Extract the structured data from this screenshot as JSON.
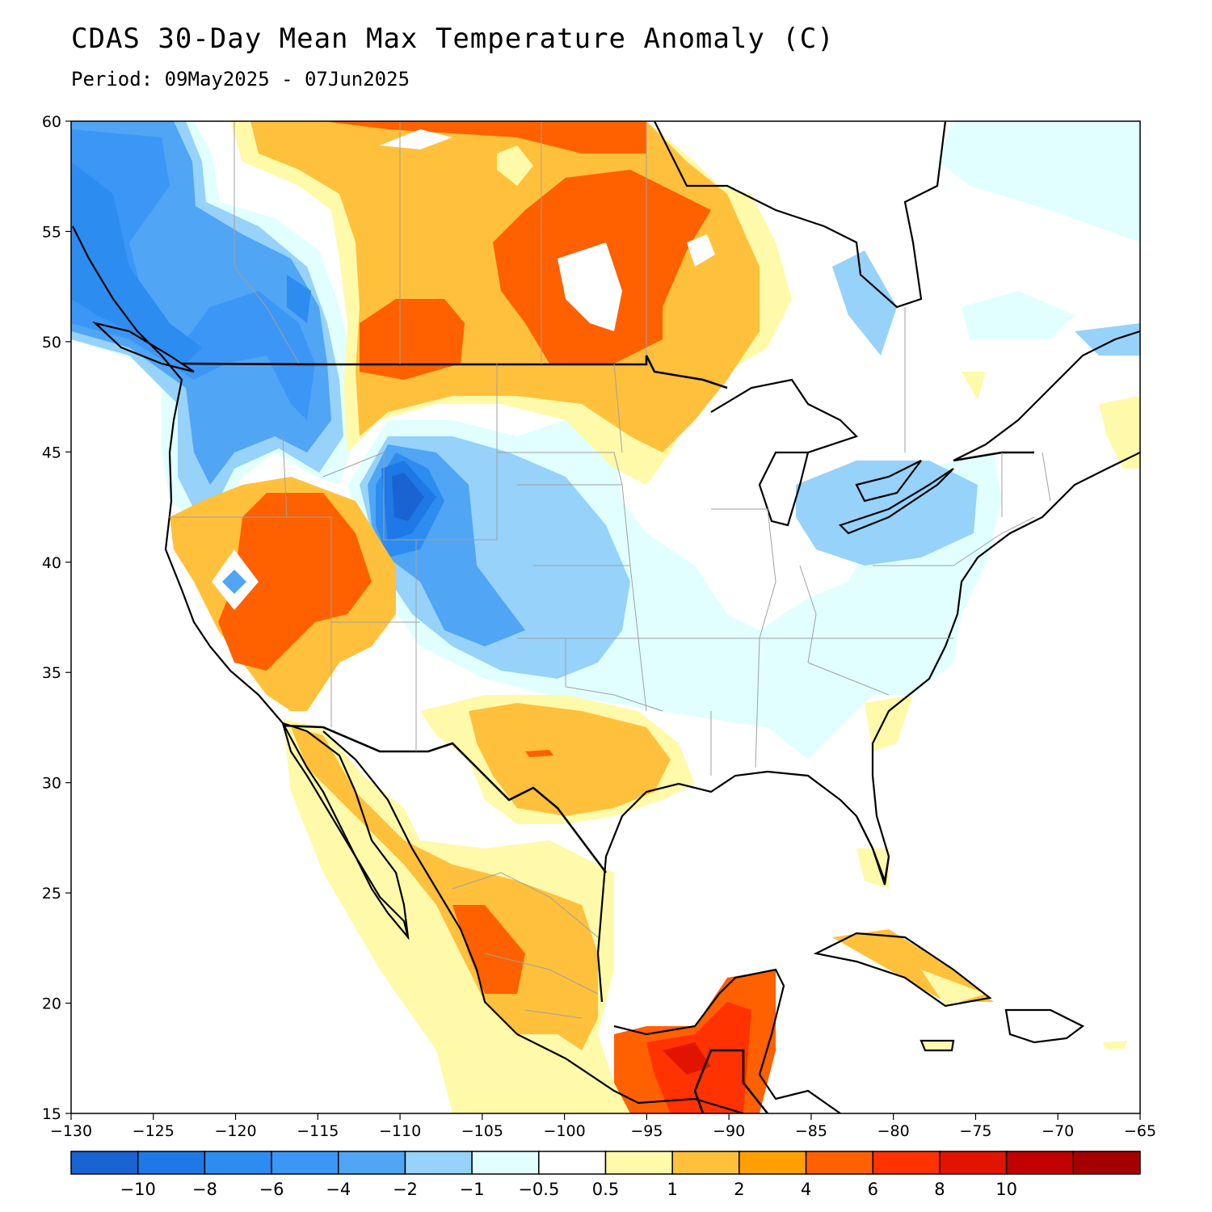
{
  "title": "CDAS 30-Day Mean Max Temperature Anomaly (C)",
  "subtitle": "Period: 09May2025 - 07Jun2025",
  "map": {
    "lon_range": [
      -130,
      -65
    ],
    "lat_range": [
      15,
      60
    ],
    "lon_ticks": [
      "−130",
      "−125",
      "−120",
      "−115",
      "−110",
      "−105",
      "−100",
      "−95",
      "−90",
      "−85",
      "−80",
      "−75",
      "−70",
      "−65"
    ],
    "lat_ticks": [
      "15",
      "20",
      "25",
      "30",
      "35",
      "40",
      "45",
      "50",
      "55",
      "60"
    ]
  },
  "colorbar": {
    "colors": [
      "#1964d2",
      "#1e78e6",
      "#2d8cf0",
      "#3c96f5",
      "#50a5f5",
      "#96d2fa",
      "#e1ffff",
      "#ffffff",
      "#fffaaa",
      "#ffc03c",
      "#ffa000",
      "#ff6000",
      "#ff3200",
      "#e11400",
      "#c00000",
      "#a50000"
    ],
    "labels": [
      "−10",
      "−8",
      "−6",
      "−4",
      "−2",
      "−1",
      "−0.5",
      "0.5",
      "1",
      "2",
      "4",
      "6",
      "8",
      "10"
    ]
  }
}
